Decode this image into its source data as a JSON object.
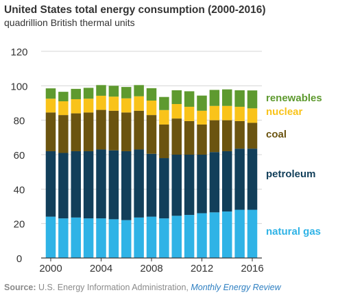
{
  "chart_data": {
    "type": "bar",
    "stacked": true,
    "title": "United States total energy consumption (2000-2016)",
    "subtitle": "quadrillion British thermal units",
    "categories": [
      "2000",
      "2001",
      "2002",
      "2003",
      "2004",
      "2005",
      "2006",
      "2007",
      "2008",
      "2009",
      "2010",
      "2011",
      "2012",
      "2013",
      "2014",
      "2015",
      "2016"
    ],
    "x_tick_labels": [
      "2000",
      "2004",
      "2008",
      "2012",
      "2016"
    ],
    "ylim": [
      0,
      120
    ],
    "y_ticks": [
      0,
      20,
      40,
      60,
      80,
      100,
      120
    ],
    "grid": true,
    "legend_placement": "right",
    "series": [
      {
        "name": "natural gas",
        "color": "#2fb3e6",
        "values": [
          24,
          23,
          23.5,
          23,
          23,
          22.5,
          22,
          23.5,
          24,
          23,
          24.5,
          25,
          26,
          26.5,
          27,
          28,
          28
        ]
      },
      {
        "name": "petroleum",
        "color": "#123f5a",
        "values": [
          38,
          38,
          38.5,
          39,
          40,
          40,
          40,
          39.5,
          36.5,
          35,
          35.5,
          35,
          34,
          35,
          35,
          35.5,
          35.5
        ]
      },
      {
        "name": "coal",
        "color": "#6b5410",
        "values": [
          22.5,
          22,
          22,
          22.5,
          23,
          23,
          22.5,
          22.5,
          22.5,
          19.5,
          21,
          19.5,
          17.5,
          18.5,
          18,
          16,
          15
        ]
      },
      {
        "name": "nuclear",
        "color": "#f9c31a",
        "values": [
          8,
          8,
          8.2,
          8,
          8.2,
          8.2,
          8.2,
          8.4,
          8.4,
          8.4,
          8.4,
          8.3,
          8,
          8.3,
          8.3,
          8.3,
          8.4
        ]
      },
      {
        "name": "renewables",
        "color": "#5e9a2f",
        "values": [
          6,
          5.5,
          6,
          6.3,
          6.2,
          6.3,
          6.6,
          6.5,
          7.2,
          7.6,
          8,
          9,
          8.8,
          9.3,
          9.6,
          9.6,
          10.4
        ]
      }
    ]
  },
  "source": {
    "label": "Source:",
    "text": " U.S. Energy Information Administration, ",
    "link": "Monthly Energy Review"
  }
}
